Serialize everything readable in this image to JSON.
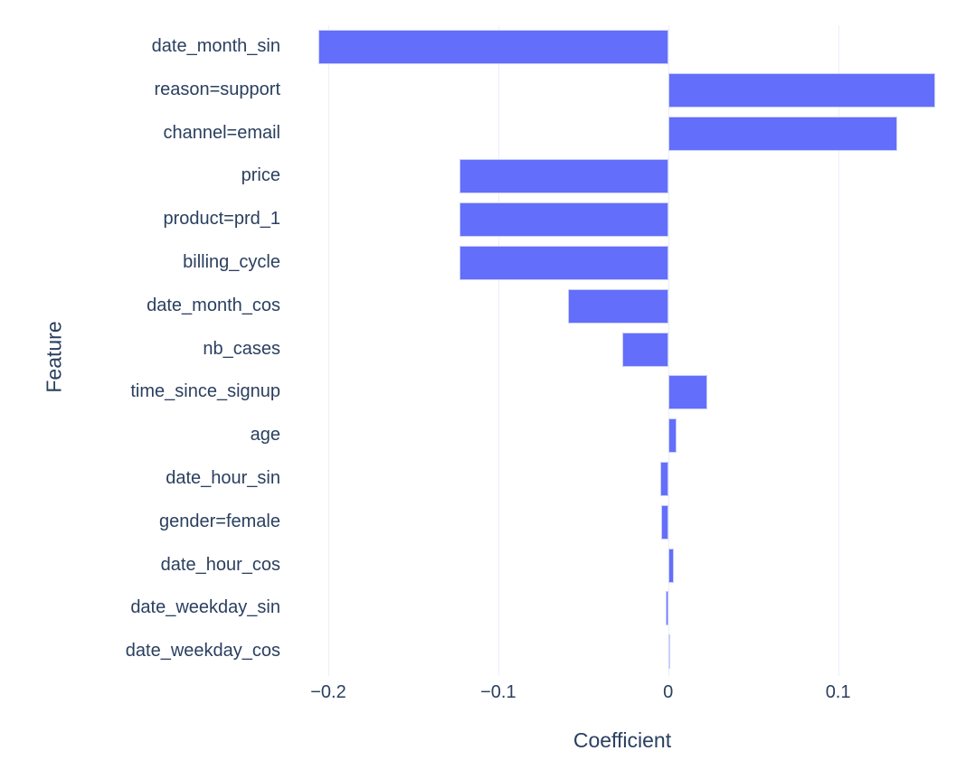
{
  "chart_data": {
    "type": "bar",
    "orientation": "horizontal",
    "xlabel": "Coefficient",
    "ylabel": "Feature",
    "categories": [
      "date_month_sin",
      "reason=support",
      "channel=email",
      "price",
      "product=prd_1",
      "billing_cycle",
      "date_month_cos",
      "nb_cases",
      "time_since_signup",
      "age",
      "date_hour_sin",
      "gender=female",
      "date_hour_cos",
      "date_weekday_sin",
      "date_weekday_cos"
    ],
    "values": [
      -0.206,
      0.157,
      0.135,
      -0.123,
      -0.123,
      -0.123,
      -0.059,
      -0.027,
      0.023,
      0.005,
      -0.0045,
      -0.004,
      0.0035,
      -0.0015,
      0.001
    ],
    "x_ticks": [
      {
        "value": -0.2,
        "label": "−0.2"
      },
      {
        "value": -0.1,
        "label": "−0.1"
      },
      {
        "value": 0,
        "label": "0"
      },
      {
        "value": 0.1,
        "label": "0.1"
      }
    ],
    "xlim": [
      -0.225,
      0.171
    ],
    "grid": true,
    "legend": false,
    "colors": {
      "bar_fill": "#636efa",
      "bar_border": "#c9cffa",
      "gridline": "#ebeff8",
      "text": "#2a3f5f",
      "background": "#ffffff"
    }
  }
}
